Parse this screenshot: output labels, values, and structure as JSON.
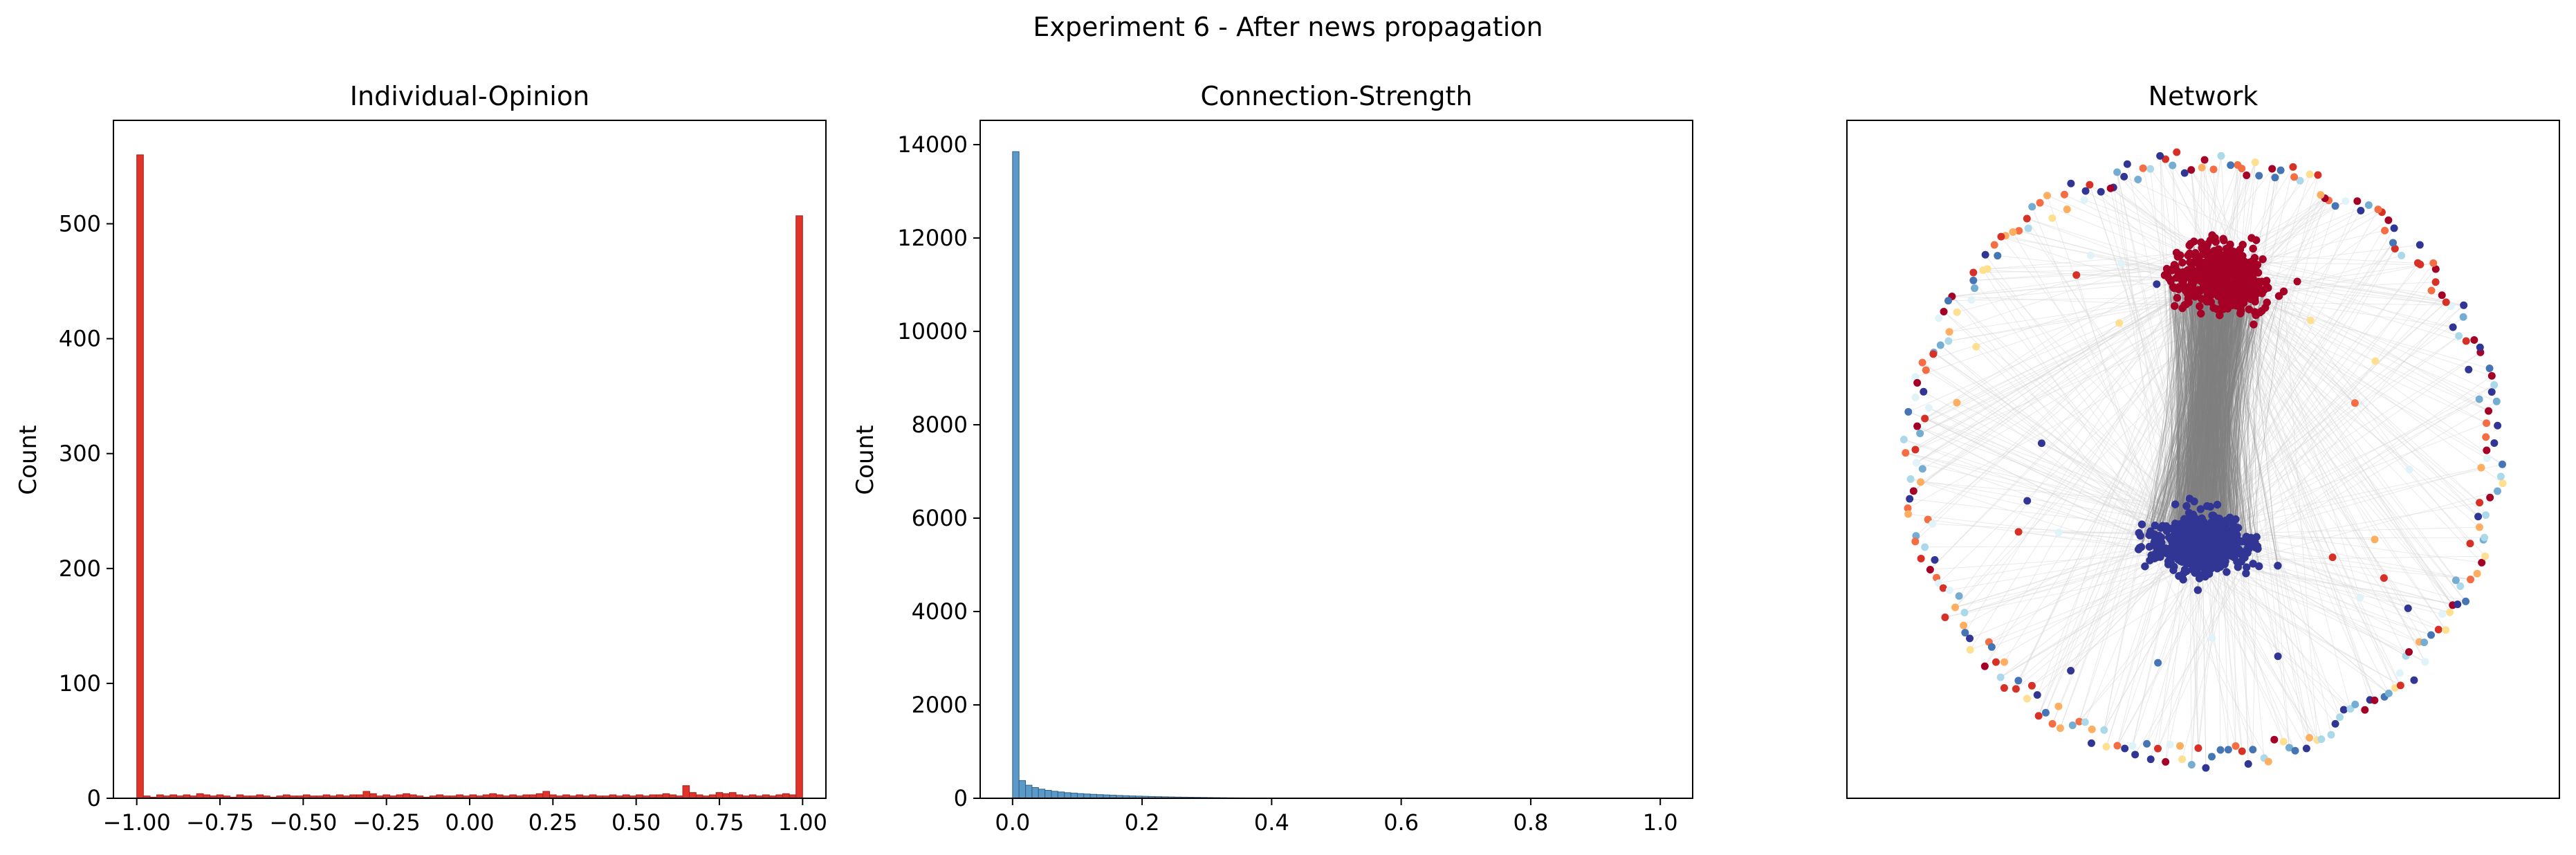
{
  "figure": {
    "suptitle": "Experiment 6 - After news propagation"
  },
  "colors": {
    "opinion_bar": "#e0342b",
    "opinion_edge": "#a8201b",
    "strength_bar": "#5b9ac8",
    "strength_edge": "#2f5f86",
    "edge_dark": "#808080",
    "edge_light": "#d9d9d9",
    "node_red": "#a50026",
    "node_blue": "#313695",
    "ring_palette": [
      "#a50026",
      "#d73027",
      "#f46d43",
      "#fdae61",
      "#fee090",
      "#e0f3f8",
      "#abd9e9",
      "#74add1",
      "#4575b4",
      "#313695"
    ]
  },
  "chart_data": [
    {
      "type": "bar",
      "kind": "histogram",
      "title": "Individual-Opinion",
      "xlabel": "",
      "ylabel": "Count",
      "xlim": [
        -1.07,
        1.07
      ],
      "ylim": [
        0,
        590
      ],
      "xticks": [
        -1.0,
        -0.75,
        -0.5,
        -0.25,
        0.0,
        0.25,
        0.5,
        0.75,
        1.0
      ],
      "xtick_labels": [
        "−1.00",
        "−0.75",
        "−0.50",
        "−0.25",
        "0.00",
        "0.25",
        "0.50",
        "0.75",
        "1.00"
      ],
      "yticks": [
        0,
        100,
        200,
        300,
        400,
        500
      ],
      "ytick_labels": [
        "0",
        "100",
        "200",
        "300",
        "400",
        "500"
      ],
      "bin_start": -1.0,
      "bin_width": 0.02,
      "values": [
        560,
        2,
        1,
        3,
        2,
        3,
        2,
        3,
        2,
        4,
        3,
        2,
        3,
        2,
        1,
        3,
        2,
        2,
        3,
        2,
        1,
        2,
        3,
        2,
        2,
        3,
        2,
        2,
        3,
        2,
        3,
        2,
        3,
        3,
        6,
        4,
        2,
        3,
        2,
        3,
        4,
        3,
        2,
        1,
        2,
        3,
        2,
        2,
        3,
        2,
        3,
        2,
        3,
        4,
        3,
        2,
        3,
        2,
        3,
        3,
        4,
        6,
        3,
        2,
        3,
        2,
        3,
        2,
        3,
        2,
        2,
        3,
        2,
        3,
        2,
        3,
        2,
        3,
        3,
        4,
        3,
        2,
        11,
        5,
        3,
        2,
        3,
        5,
        4,
        5,
        3,
        2,
        3,
        2,
        3,
        2,
        3,
        4,
        3,
        507
      ],
      "grid": false
    },
    {
      "type": "bar",
      "kind": "histogram",
      "title": "Connection-Strength",
      "xlabel": "",
      "ylabel": "Count",
      "xlim": [
        -0.05,
        1.05
      ],
      "ylim": [
        0,
        14520
      ],
      "xticks": [
        0.0,
        0.2,
        0.4,
        0.6,
        0.8,
        1.0
      ],
      "xtick_labels": [
        "0.0",
        "0.2",
        "0.4",
        "0.6",
        "0.8",
        "1.0"
      ],
      "yticks": [
        0,
        2000,
        4000,
        6000,
        8000,
        10000,
        12000,
        14000
      ],
      "ytick_labels": [
        "0",
        "2000",
        "4000",
        "6000",
        "8000",
        "10000",
        "12000",
        "14000"
      ],
      "bin_start": 0.0,
      "bin_width": 0.01,
      "values": [
        13850,
        380,
        280,
        230,
        195,
        170,
        150,
        135,
        120,
        110,
        100,
        92,
        85,
        78,
        72,
        66,
        60,
        55,
        50,
        46,
        42,
        38,
        35,
        32,
        29,
        26,
        24,
        22,
        20,
        18,
        16,
        14,
        12,
        10,
        9,
        8,
        7,
        6,
        5,
        4
      ],
      "grid": false
    },
    {
      "type": "scatter",
      "kind": "network",
      "title": "Network",
      "xlabel": "",
      "ylabel": "",
      "axis_ticks": false,
      "clusters": [
        {
          "name": "",
          "color": "node_red",
          "center": [
            0.05,
            0.6
          ],
          "nodes": 520
        },
        {
          "name": "",
          "color": "node_blue",
          "center": [
            0.0,
            -0.28
          ],
          "nodes": 520
        }
      ],
      "ring_nodes": 260,
      "grid": false
    }
  ]
}
